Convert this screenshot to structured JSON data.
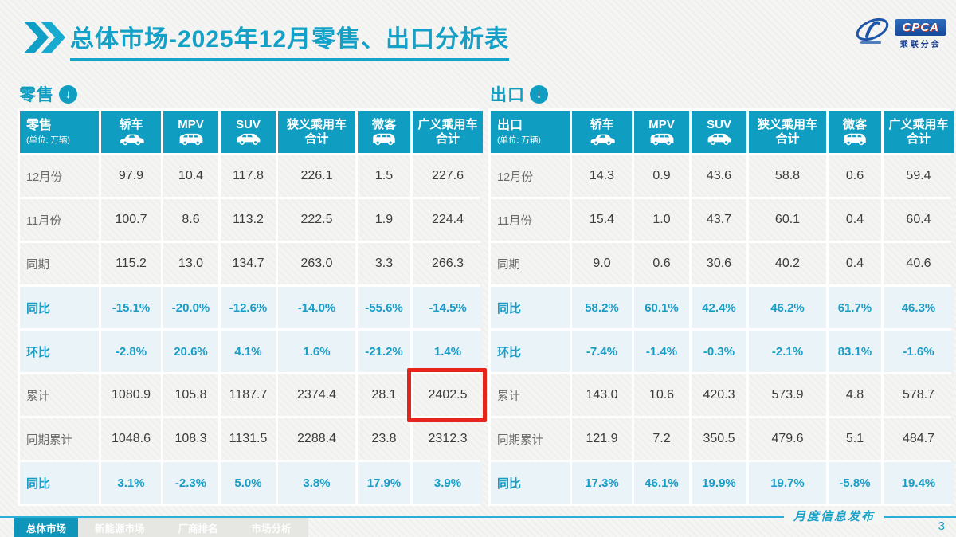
{
  "watermark": "乘联分会",
  "title": {
    "prefix": "总体市场",
    "rest": "-2025年12月零售、出口分析表"
  },
  "logo": {
    "name": "CPCA",
    "subname": "乘联分会"
  },
  "footer": {
    "tabs": [
      {
        "label": "总体市场",
        "active": true
      },
      {
        "label": "新能源市场",
        "active": false
      },
      {
        "label": "厂商排名",
        "active": false
      },
      {
        "label": "市场分析",
        "active": false
      }
    ],
    "publish_label": "月度信息发布",
    "page_number": "3"
  },
  "colors": {
    "accent_teal": "#0f9dc2",
    "percent_text": "#189dc6",
    "highlight_red": "#e7241b",
    "logo_blue": "#1b3f8f"
  },
  "tables": [
    {
      "section_label": "零售",
      "header_label": "零售",
      "unit_label": "(单位: 万辆)",
      "columns": [
        {
          "label": "轿车",
          "icon": "car"
        },
        {
          "label": "MPV",
          "icon": "mpv"
        },
        {
          "label": "SUV",
          "icon": "suv"
        },
        {
          "label": "狭义乘用车",
          "label2": "合计"
        },
        {
          "label": "微客",
          "icon": "van"
        },
        {
          "label": "广义乘用车",
          "label2": "合计"
        }
      ],
      "rows": [
        {
          "label": "12月份",
          "type": "num",
          "values": [
            "97.9",
            "10.4",
            "117.8",
            "226.1",
            "1.5",
            "227.6"
          ]
        },
        {
          "label": "11月份",
          "type": "num",
          "values": [
            "100.7",
            "8.6",
            "113.2",
            "222.5",
            "1.9",
            "224.4"
          ]
        },
        {
          "label": "同期",
          "type": "num",
          "values": [
            "115.2",
            "13.0",
            "134.7",
            "263.0",
            "3.3",
            "266.3"
          ]
        },
        {
          "label": "同比",
          "type": "pct",
          "values": [
            "-15.1%",
            "-20.0%",
            "-12.6%",
            "-14.0%",
            "-55.6%",
            "-14.5%"
          ]
        },
        {
          "label": "环比",
          "type": "pct",
          "values": [
            "-2.8%",
            "20.6%",
            "4.1%",
            "1.6%",
            "-21.2%",
            "1.4%"
          ]
        },
        {
          "label": "累计",
          "type": "num",
          "values": [
            "1080.9",
            "105.8",
            "1187.7",
            "2374.4",
            "28.1",
            "2402.5"
          ],
          "highlight_col": 5
        },
        {
          "label": "同期累计",
          "type": "num",
          "values": [
            "1048.6",
            "108.3",
            "1131.5",
            "2288.4",
            "23.8",
            "2312.3"
          ]
        },
        {
          "label": "同比",
          "type": "pct",
          "values": [
            "3.1%",
            "-2.3%",
            "5.0%",
            "3.8%",
            "17.9%",
            "3.9%"
          ]
        }
      ]
    },
    {
      "section_label": "出口",
      "header_label": "出口",
      "unit_label": "(单位: 万辆)",
      "columns": [
        {
          "label": "轿车",
          "icon": "car"
        },
        {
          "label": "MPV",
          "icon": "mpv"
        },
        {
          "label": "SUV",
          "icon": "suv"
        },
        {
          "label": "狭义乘用车",
          "label2": "合计"
        },
        {
          "label": "微客",
          "icon": "van"
        },
        {
          "label": "广义乘用车",
          "label2": "合计"
        }
      ],
      "rows": [
        {
          "label": "12月份",
          "type": "num",
          "values": [
            "14.3",
            "0.9",
            "43.6",
            "58.8",
            "0.6",
            "59.4"
          ]
        },
        {
          "label": "11月份",
          "type": "num",
          "values": [
            "15.4",
            "1.0",
            "43.7",
            "60.1",
            "0.4",
            "60.4"
          ]
        },
        {
          "label": "同期",
          "type": "num",
          "values": [
            "9.0",
            "0.6",
            "30.6",
            "40.2",
            "0.4",
            "40.6"
          ]
        },
        {
          "label": "同比",
          "type": "pct",
          "values": [
            "58.2%",
            "60.1%",
            "42.4%",
            "46.2%",
            "61.7%",
            "46.3%"
          ]
        },
        {
          "label": "环比",
          "type": "pct",
          "values": [
            "-7.4%",
            "-1.4%",
            "-0.3%",
            "-2.1%",
            "83.1%",
            "-1.6%"
          ]
        },
        {
          "label": "累计",
          "type": "num",
          "values": [
            "143.0",
            "10.6",
            "420.3",
            "573.9",
            "4.8",
            "578.7"
          ]
        },
        {
          "label": "同期累计",
          "type": "num",
          "values": [
            "121.9",
            "7.2",
            "350.5",
            "479.6",
            "5.1",
            "484.7"
          ]
        },
        {
          "label": "同比",
          "type": "pct",
          "values": [
            "17.3%",
            "46.1%",
            "19.9%",
            "19.7%",
            "-5.8%",
            "19.4%"
          ]
        }
      ]
    }
  ]
}
